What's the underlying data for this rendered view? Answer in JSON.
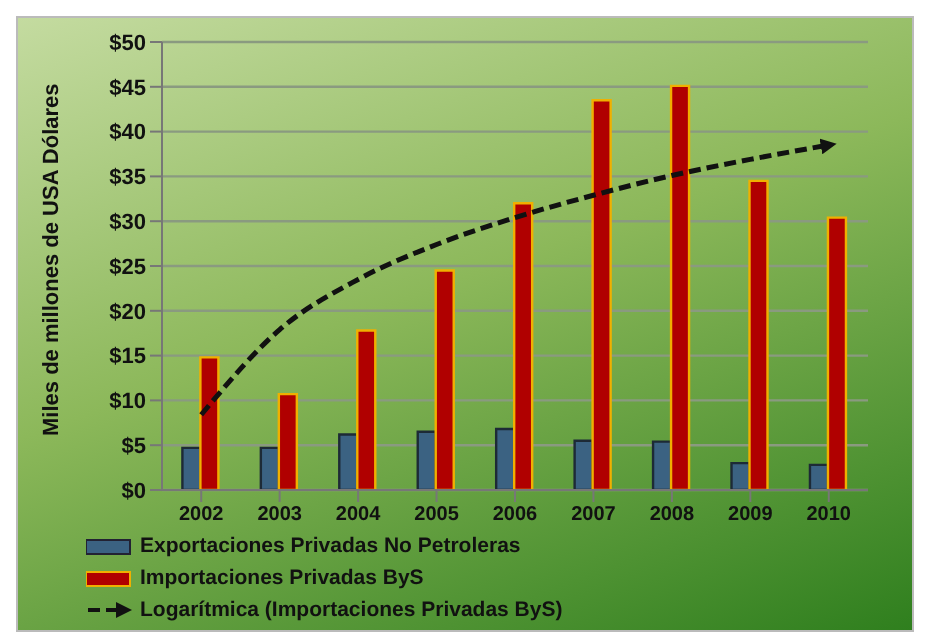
{
  "chart_data": {
    "type": "bar",
    "ylabel": "Miles de millones de USA Dólares",
    "categories": [
      "2002",
      "2003",
      "2004",
      "2005",
      "2006",
      "2007",
      "2008",
      "2009",
      "2010"
    ],
    "series": [
      {
        "name": "Exportaciones Privadas No Petroleras",
        "color": "#3b6282",
        "values": [
          4.7,
          4.7,
          6.2,
          6.5,
          6.8,
          5.5,
          5.4,
          3.0,
          2.8
        ]
      },
      {
        "name": "Importaciones Privadas ByS",
        "color": "#b00000",
        "values": [
          14.8,
          10.7,
          17.8,
          24.5,
          32.0,
          43.5,
          45.1,
          34.5,
          30.4
        ]
      },
      {
        "name": "Logarítmica (Importaciones Privadas ByS)",
        "type": "line",
        "color": "#111111",
        "line_style": "dashed",
        "marker": "none",
        "values": [
          8.4,
          17.9,
          23.5,
          27.4,
          30.4,
          32.9,
          35.1,
          36.9,
          38.5
        ]
      }
    ],
    "ylim": [
      0,
      50
    ],
    "yticks": [
      {
        "value": 0,
        "label": "$0"
      },
      {
        "value": 5,
        "label": "$5"
      },
      {
        "value": 10,
        "label": "$10"
      },
      {
        "value": 15,
        "label": "$15"
      },
      {
        "value": 20,
        "label": "$20"
      },
      {
        "value": 25,
        "label": "$25"
      },
      {
        "value": 30,
        "label": "$30"
      },
      {
        "value": 35,
        "label": "$35"
      },
      {
        "value": 40,
        "label": "$40"
      },
      {
        "value": 45,
        "label": "$45"
      },
      {
        "value": 50,
        "label": "$50"
      }
    ],
    "grid": "y",
    "legend": "bottom"
  }
}
